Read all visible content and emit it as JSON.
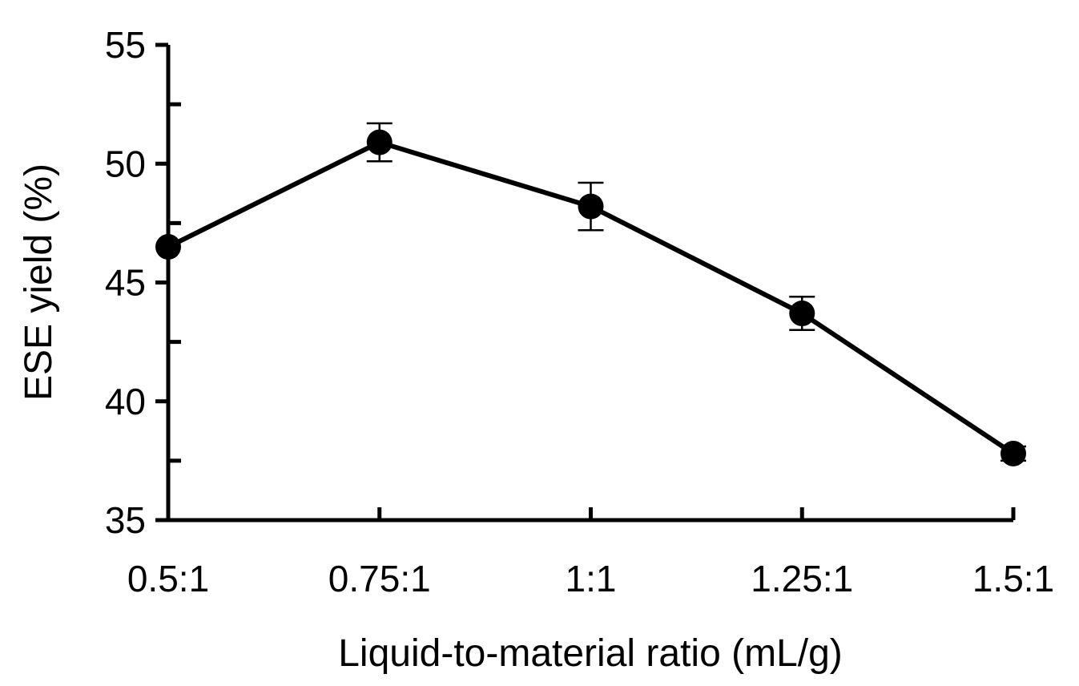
{
  "chart_data": {
    "type": "line",
    "title": "",
    "xlabel": "Liquid-to-material ratio (mL/g)",
    "ylabel": "ESE yield (%)",
    "categories": [
      "0.5:1",
      "0.75:1",
      "1:1",
      "1.25:1",
      "1.5:1"
    ],
    "ylim": [
      35,
      55
    ],
    "yticks": [
      "35",
      "40",
      "45",
      "50",
      "55"
    ],
    "grid": false,
    "legend": "none",
    "series": [
      {
        "values": [
          46.5,
          50.9,
          48.2,
          43.7,
          37.8
        ],
        "errors": [
          0.0,
          0.8,
          1.0,
          0.7,
          0.3
        ],
        "color": "#000000",
        "marker": "filled-circle"
      }
    ]
  }
}
